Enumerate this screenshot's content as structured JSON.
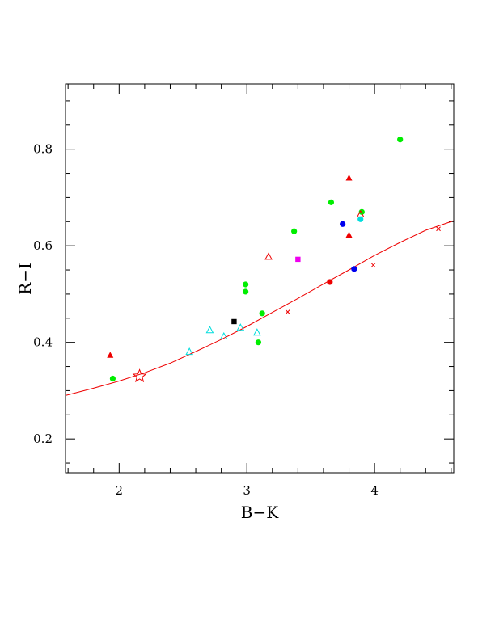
{
  "chart_data": {
    "type": "scatter",
    "xlabel": "B−K",
    "ylabel": "R−I",
    "xlim": [
      1.58,
      4.62
    ],
    "ylim": [
      0.13,
      0.935
    ],
    "xticks": [
      {
        "value": 2,
        "label": "2"
      },
      {
        "value": 3,
        "label": "3"
      },
      {
        "value": 4,
        "label": "4"
      }
    ],
    "yticks": [
      {
        "value": 0.2,
        "label": "0.2"
      },
      {
        "value": 0.4,
        "label": "0.4"
      },
      {
        "value": 0.6,
        "label": "0.6"
      },
      {
        "value": 0.8,
        "label": "0.8"
      }
    ],
    "grid": false,
    "series": [
      {
        "marker": "circle",
        "color": "#00ee00",
        "points": [
          [
            1.95,
            0.325
          ],
          [
            2.99,
            0.505
          ],
          [
            2.99,
            0.52
          ],
          [
            3.09,
            0.4
          ],
          [
            3.12,
            0.46
          ],
          [
            3.37,
            0.63
          ],
          [
            3.66,
            0.69
          ],
          [
            3.9,
            0.67
          ],
          [
            4.2,
            0.82
          ]
        ]
      },
      {
        "marker": "triangle",
        "color": "#ee0000",
        "points": [
          [
            1.93,
            0.373
          ],
          [
            3.8,
            0.74
          ],
          [
            3.8,
            0.622
          ]
        ]
      },
      {
        "marker": "triangle-open",
        "color": "#ee0000",
        "points": [
          [
            3.17,
            0.577
          ],
          [
            3.89,
            0.665
          ]
        ]
      },
      {
        "marker": "triangle-open",
        "color": "#00dddd",
        "points": [
          [
            2.55,
            0.38
          ],
          [
            2.71,
            0.425
          ],
          [
            2.82,
            0.412
          ],
          [
            2.95,
            0.43
          ],
          [
            3.08,
            0.42
          ]
        ]
      },
      {
        "marker": "circle",
        "color": "#0000ee",
        "points": [
          [
            3.75,
            0.645
          ],
          [
            3.84,
            0.552
          ]
        ]
      },
      {
        "marker": "circle",
        "color": "#00dddd",
        "points": [
          [
            3.89,
            0.655
          ]
        ]
      },
      {
        "marker": "circle",
        "color": "#ee0000",
        "points": [
          [
            3.65,
            0.525
          ]
        ]
      },
      {
        "marker": "square",
        "color": "#000000",
        "points": [
          [
            2.9,
            0.443
          ]
        ]
      },
      {
        "marker": "square",
        "color": "#ee00ee",
        "points": [
          [
            3.4,
            0.572
          ]
        ]
      },
      {
        "marker": "star-open",
        "color": "#ee0000",
        "points": [
          [
            2.16,
            0.33
          ]
        ]
      },
      {
        "marker": "cross",
        "color": "#ee0000",
        "points": [
          [
            3.32,
            0.463
          ],
          [
            3.99,
            0.56
          ],
          [
            4.5,
            0.635
          ]
        ]
      }
    ],
    "curve": {
      "color": "#ee0000",
      "points": [
        [
          1.58,
          0.29
        ],
        [
          1.8,
          0.305
        ],
        [
          2.0,
          0.32
        ],
        [
          2.2,
          0.337
        ],
        [
          2.4,
          0.357
        ],
        [
          2.6,
          0.381
        ],
        [
          2.8,
          0.406
        ],
        [
          3.0,
          0.433
        ],
        [
          3.2,
          0.462
        ],
        [
          3.4,
          0.491
        ],
        [
          3.6,
          0.521
        ],
        [
          3.8,
          0.55
        ],
        [
          4.0,
          0.58
        ],
        [
          4.2,
          0.607
        ],
        [
          4.4,
          0.632
        ],
        [
          4.62,
          0.652
        ]
      ]
    }
  }
}
